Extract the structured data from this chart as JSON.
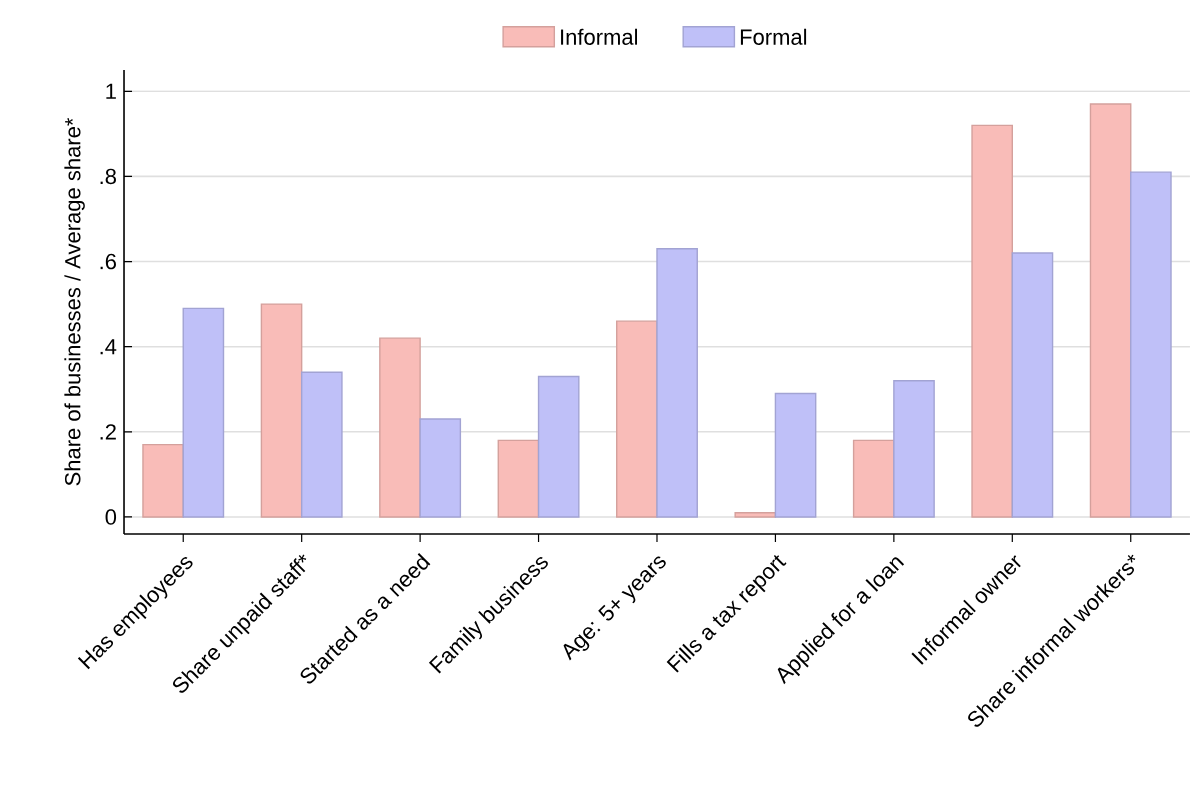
{
  "chart_data": {
    "type": "bar",
    "ylabel": "Share of businesses / Average share*",
    "categories": [
      "Has employees",
      "Share unpaid staff*",
      "Started as a need",
      "Family business",
      "Age: 5+ years",
      "Fills a tax report",
      "Applied for a loan",
      "Informal owner",
      "Share informal workers*"
    ],
    "series": [
      {
        "name": "Informal",
        "color": "#f9bcb8",
        "values": [
          0.17,
          0.5,
          0.42,
          0.18,
          0.46,
          0.01,
          0.18,
          0.92,
          0.97
        ]
      },
      {
        "name": "Formal",
        "color": "#bfc0f8",
        "values": [
          0.49,
          0.34,
          0.23,
          0.33,
          0.63,
          0.29,
          0.32,
          0.62,
          0.81
        ]
      }
    ],
    "ylim": [
      -0.04,
      1.05
    ],
    "yticks": [
      {
        "value": 0,
        "label": "0"
      },
      {
        "value": 0.2,
        "label": ".2"
      },
      {
        "value": 0.4,
        "label": ".4"
      },
      {
        "value": 0.6,
        "label": ".6"
      },
      {
        "value": 0.8,
        "label": ".8"
      },
      {
        "value": 1,
        "label": "1"
      }
    ],
    "grid": "y",
    "legend": "top"
  }
}
